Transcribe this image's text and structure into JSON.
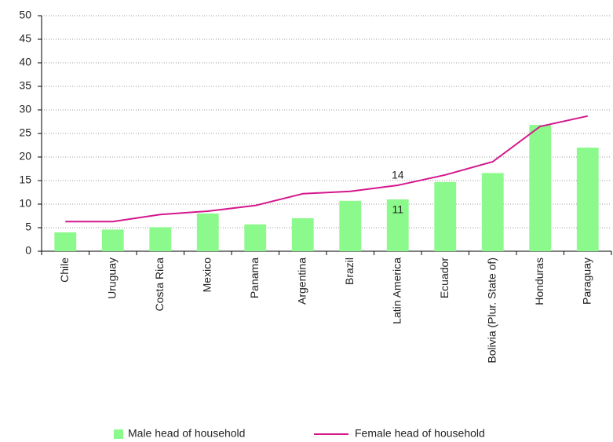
{
  "chart_data": {
    "type": "bar-line",
    "categories": [
      "Chile",
      "Uruguay",
      "Costa Rica",
      "Mexico",
      "Panama",
      "Argentina",
      "Brazil",
      "Latin America",
      "Ecuador",
      "Bolivia (Plur. State of)",
      "Honduras",
      "Paraguay"
    ],
    "series": [
      {
        "name": "Male head of household",
        "type": "bar",
        "color": "#8cf98c",
        "values": [
          4,
          4.6,
          5.1,
          8,
          5.7,
          7,
          10.7,
          11,
          14.7,
          16.6,
          26.8,
          22
        ],
        "value_labels": [
          null,
          null,
          null,
          null,
          null,
          null,
          null,
          "11",
          null,
          null,
          null,
          null
        ]
      },
      {
        "name": "Female head of household",
        "type": "line",
        "color": "#d4178d",
        "values": [
          6.3,
          6.3,
          7.8,
          8.5,
          9.7,
          12.2,
          12.7,
          14,
          16.2,
          19,
          26.5,
          28.7
        ],
        "value_labels": [
          null,
          null,
          null,
          null,
          null,
          null,
          null,
          "14",
          null,
          null,
          null,
          null
        ]
      }
    ],
    "ylim": [
      0,
      50
    ],
    "yticks": [
      0,
      5,
      10,
      15,
      20,
      25,
      30,
      35,
      40,
      45,
      50
    ],
    "grid": true,
    "legend": "bottom"
  }
}
